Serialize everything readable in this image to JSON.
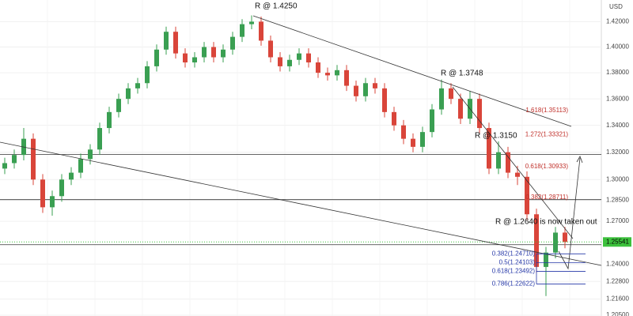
{
  "chart_data": {
    "type": "candlestick",
    "log": true,
    "grid": true,
    "currency": "USD",
    "up_color": "#3a9f52",
    "down_color": "#d9453a",
    "open": [
      1.308,
      1.312,
      1.318,
      1.33,
      1.3,
      1.28,
      1.288,
      1.3,
      1.305,
      1.315,
      1.322,
      1.338,
      1.35,
      1.36,
      1.368,
      1.372,
      1.385,
      1.398,
      1.412,
      1.395,
      1.388,
      1.392,
      1.4,
      1.392,
      1.398,
      1.408,
      1.418,
      1.42,
      1.405,
      1.392,
      1.385,
      1.39,
      1.395,
      1.388,
      1.38,
      1.378,
      1.382,
      1.37,
      1.362,
      1.372,
      1.368,
      1.35,
      1.34,
      1.33,
      1.324,
      1.335,
      1.352,
      1.368,
      1.36,
      1.345,
      1.36,
      1.338,
      1.308,
      1.32,
      1.305,
      1.302,
      1.275,
      1.238,
      1.248,
      1.262
    ],
    "high": [
      1.316,
      1.322,
      1.338,
      1.334,
      1.304,
      1.292,
      1.304,
      1.309,
      1.319,
      1.326,
      1.342,
      1.354,
      1.364,
      1.372,
      1.376,
      1.389,
      1.402,
      1.416,
      1.416,
      1.399,
      1.396,
      1.404,
      1.404,
      1.402,
      1.412,
      1.422,
      1.425,
      1.424,
      1.409,
      1.396,
      1.394,
      1.399,
      1.399,
      1.392,
      1.384,
      1.386,
      1.386,
      1.374,
      1.376,
      1.376,
      1.372,
      1.354,
      1.344,
      1.334,
      1.339,
      1.356,
      1.3748,
      1.372,
      1.364,
      1.366,
      1.364,
      1.342,
      1.328,
      1.324,
      1.31,
      1.306,
      1.279,
      1.252,
      1.266,
      1.266
    ],
    "low": [
      1.304,
      1.308,
      1.314,
      1.296,
      1.276,
      1.274,
      1.284,
      1.296,
      1.301,
      1.311,
      1.318,
      1.334,
      1.346,
      1.356,
      1.364,
      1.368,
      1.381,
      1.394,
      1.391,
      1.384,
      1.384,
      1.388,
      1.388,
      1.388,
      1.394,
      1.404,
      1.414,
      1.401,
      1.388,
      1.381,
      1.381,
      1.386,
      1.384,
      1.376,
      1.374,
      1.374,
      1.366,
      1.358,
      1.358,
      1.364,
      1.346,
      1.336,
      1.326,
      1.32,
      1.32,
      1.331,
      1.348,
      1.356,
      1.341,
      1.341,
      1.334,
      1.304,
      1.304,
      1.301,
      1.296,
      1.271,
      1.234,
      1.218,
      1.244,
      1.251
    ],
    "close": [
      1.312,
      1.318,
      1.33,
      1.3,
      1.28,
      1.288,
      1.3,
      1.305,
      1.315,
      1.322,
      1.338,
      1.35,
      1.36,
      1.368,
      1.372,
      1.385,
      1.398,
      1.412,
      1.395,
      1.388,
      1.392,
      1.4,
      1.392,
      1.398,
      1.408,
      1.418,
      1.42,
      1.405,
      1.392,
      1.385,
      1.39,
      1.395,
      1.388,
      1.38,
      1.378,
      1.382,
      1.37,
      1.362,
      1.372,
      1.368,
      1.35,
      1.34,
      1.33,
      1.324,
      1.335,
      1.352,
      1.368,
      1.36,
      1.345,
      1.36,
      1.338,
      1.308,
      1.32,
      1.305,
      1.302,
      1.275,
      1.238,
      1.248,
      1.262,
      1.25541
    ],
    "ylim": [
      1.2045,
      1.4373
    ],
    "yticks": [
      {
        "value": 1.42,
        "label": "1.42000"
      },
      {
        "value": 1.4,
        "label": "1.40000"
      },
      {
        "value": 1.38,
        "label": "1.38000"
      },
      {
        "value": 1.36,
        "label": "1.36000"
      },
      {
        "value": 1.34,
        "label": "1.34000"
      },
      {
        "value": 1.32,
        "label": "1.32000"
      },
      {
        "value": 1.3,
        "label": "1.30000"
      },
      {
        "value": 1.285,
        "label": "1.28500"
      },
      {
        "value": 1.27,
        "label": "1.27000"
      },
      {
        "value": 1.24,
        "label": "1.24000"
      },
      {
        "value": 1.228,
        "label": "1.22800"
      },
      {
        "value": 1.216,
        "label": "1.21600"
      },
      {
        "value": 1.205,
        "label": "1.20500"
      }
    ],
    "last_price": {
      "value": 1.25541,
      "label": "1.25541",
      "color": "#3cc13c"
    },
    "levels": [
      1.3183,
      1.2855,
      1.2535
    ],
    "annotations": [
      "R @ 1.4250",
      "R @ 1.3748",
      "R @ 1.3150",
      "R @ 1.2640 is now taken out"
    ],
    "fib_extensions": {
      "color": "#c0302a",
      "items": [
        {
          "text": "1.618(1.35113)",
          "price": 1.35113
        },
        {
          "text": "1.272(1.33321)",
          "price": 1.33321
        },
        {
          "text": "0.618(1.30933)",
          "price": 1.30933
        },
        {
          "text": "0.382(1.28711)",
          "price": 1.28711
        }
      ]
    },
    "fib_retracements": {
      "color": "#2638a8",
      "items": [
        {
          "text": "0.382(1.24710)",
          "price": 1.2471
        },
        {
          "text": "0.5(1.24103)",
          "price": 1.24103
        },
        {
          "text": "0.618(1.23492)",
          "price": 1.23492
        },
        {
          "text": "0.786(1.22622)",
          "price": 1.22622
        }
      ]
    }
  }
}
